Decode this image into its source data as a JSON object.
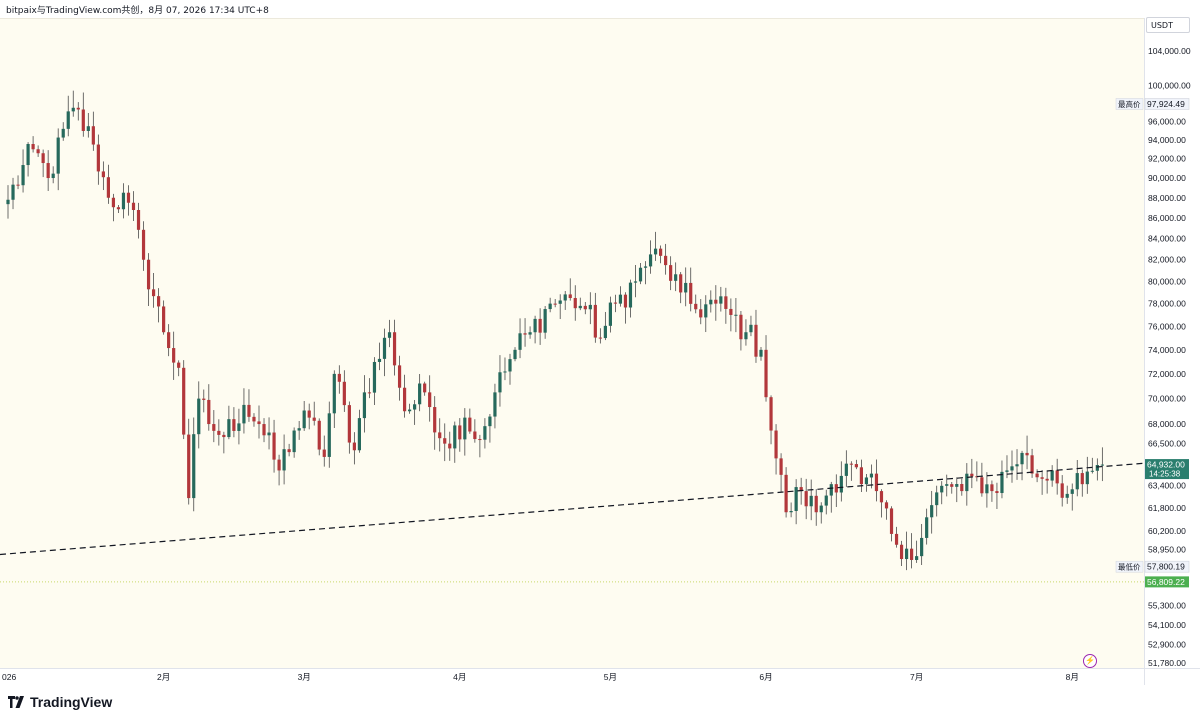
{
  "header": {
    "info": "bitpaix与TradingView.com共创，8月 07, 2026 17:34 UTC+8"
  },
  "price_axis": {
    "currency": "USDT",
    "high_label": "最高价",
    "high_value": "97,924.49",
    "low_label": "最低价",
    "low_value": "57,800.19",
    "current_price": "64,932.00",
    "countdown": "14:25:38",
    "marker_price": "56,809.22"
  },
  "branding": {
    "logo_text": "TradingView"
  },
  "colors": {
    "up": "#26695c",
    "down": "#b2373b",
    "background": "#fefcf1",
    "current_price_bg": "#2a7e6e",
    "marker_bg": "#4caf50",
    "trendline": "#131722",
    "marker_line": "#c8d86a"
  },
  "chart_data": {
    "type": "candlestick",
    "title": "",
    "yscale": "log",
    "ylim": [
      51500,
      108000
    ],
    "y_ticks": [
      104000,
      100000,
      96000,
      94000,
      92000,
      90000,
      88000,
      86000,
      84000,
      82000,
      80000,
      78000,
      76000,
      74000,
      72000,
      70000,
      68000,
      66500,
      63400,
      61800,
      60200,
      58950,
      55300,
      54100,
      52900,
      51780
    ],
    "y_tick_labels": [
      "104,000.00",
      "100,000.00",
      "96,000.00",
      "94,000.00",
      "92,000.00",
      "90,000.00",
      "88,000.00",
      "86,000.00",
      "84,000.00",
      "82,000.00",
      "80,000.00",
      "78,000.00",
      "76,000.00",
      "74,000.00",
      "72,000.00",
      "70,000.00",
      "68,000.00",
      "66,500.00",
      "63,400.00",
      "61,800.00",
      "60,200.00",
      "58,950.00",
      "55,300.00",
      "54,100.00",
      "52,900.00",
      "51,780.00"
    ],
    "x_tick_labels": [
      {
        "label": "026",
        "day": 0
      },
      {
        "label": "2月",
        "day": 31
      },
      {
        "label": "3月",
        "day": 59
      },
      {
        "label": "4月",
        "day": 90
      },
      {
        "label": "5月",
        "day": 120
      },
      {
        "label": "6月",
        "day": 151
      },
      {
        "label": "7月",
        "day": 181
      },
      {
        "label": "8月",
        "day": 212
      }
    ],
    "trendline": {
      "from": {
        "day": -2,
        "price": 58600
      },
      "to": {
        "day": 232,
        "price": 65200
      },
      "style": "dashed"
    },
    "marker_level": 56809.22,
    "last_day": 218,
    "anchors": [
      [
        0,
        87800
      ],
      [
        5,
        93000
      ],
      [
        8,
        90000
      ],
      [
        13,
        97500
      ],
      [
        17,
        93500
      ],
      [
        20,
        88000
      ],
      [
        24,
        87500
      ],
      [
        27,
        82000
      ],
      [
        31,
        75500
      ],
      [
        34,
        72500
      ],
      [
        36,
        62500
      ],
      [
        38,
        70000
      ],
      [
        40,
        68000
      ],
      [
        43,
        67000
      ],
      [
        47,
        69500
      ],
      [
        50,
        68000
      ],
      [
        54,
        64500
      ],
      [
        57,
        67500
      ],
      [
        60,
        68500
      ],
      [
        63,
        65500
      ],
      [
        65,
        72000
      ],
      [
        69,
        66000
      ],
      [
        71,
        70500
      ],
      [
        76,
        75500
      ],
      [
        79,
        69000
      ],
      [
        83,
        70500
      ],
      [
        87,
        66500
      ],
      [
        91,
        68500
      ],
      [
        94,
        66800
      ],
      [
        97,
        70500
      ],
      [
        101,
        74000
      ],
      [
        104,
        75500
      ],
      [
        108,
        78000
      ],
      [
        112,
        78500
      ],
      [
        115,
        77500
      ],
      [
        118,
        75000
      ],
      [
        121,
        78000
      ],
      [
        125,
        80000
      ],
      [
        128,
        82500
      ],
      [
        131,
        81500
      ],
      [
        134,
        79000
      ],
      [
        137,
        77500
      ],
      [
        141,
        78000
      ],
      [
        144,
        77000
      ],
      [
        147,
        75500
      ],
      [
        150,
        74000
      ],
      [
        152,
        67500
      ],
      [
        155,
        61500
      ],
      [
        158,
        63000
      ],
      [
        161,
        61500
      ],
      [
        164,
        63500
      ],
      [
        167,
        65000
      ],
      [
        170,
        63500
      ],
      [
        173,
        63000
      ],
      [
        176,
        60000
      ],
      [
        179,
        59000
      ],
      [
        181,
        58500
      ],
      [
        184,
        62000
      ],
      [
        187,
        63500
      ],
      [
        190,
        63000
      ],
      [
        193,
        64000
      ],
      [
        196,
        63000
      ],
      [
        199,
        64500
      ],
      [
        202,
        65800
      ],
      [
        205,
        64000
      ],
      [
        208,
        64500
      ],
      [
        211,
        62800
      ],
      [
        214,
        63500
      ],
      [
        217,
        64900
      ],
      [
        218,
        64932
      ]
    ]
  }
}
